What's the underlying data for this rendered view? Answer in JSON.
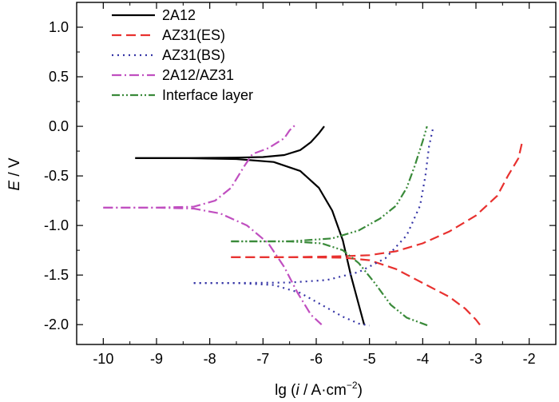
{
  "chart_data": {
    "type": "line",
    "title": "",
    "xlabel": {
      "prefix": "lg (",
      "italic": "i",
      "middle": " / A·cm",
      "sup": "−2",
      "suffix": ")"
    },
    "ylabel": {
      "italic": "E",
      "rest": " / V"
    },
    "xlim": [
      -10.5,
      -1.5
    ],
    "ylim": [
      -2.2,
      1.25
    ],
    "xticks": [
      -10,
      -9,
      -8,
      -7,
      -6,
      -5,
      -4,
      -3,
      -2
    ],
    "xtick_labels": [
      "-10",
      "-9",
      "-8",
      "-7",
      "-6",
      "-5",
      "-4",
      "-3",
      "-2"
    ],
    "yticks": [
      1.0,
      0.5,
      0.0,
      -0.5,
      -1.0,
      -1.5,
      -2.0
    ],
    "ytick_labels": [
      "1.0",
      "0.5",
      "0.0",
      "-0.5",
      "-1.0",
      "-1.5",
      "-2.0"
    ],
    "grid": false,
    "legend_position": "top-left",
    "series": [
      {
        "name": "2A12",
        "color": "#000000",
        "dash": "solid",
        "anodic": [
          [
            -9.4,
            -0.32
          ],
          [
            -8.5,
            -0.32
          ],
          [
            -7.5,
            -0.315
          ],
          [
            -7.0,
            -0.31
          ],
          [
            -6.6,
            -0.29
          ],
          [
            -6.3,
            -0.24
          ],
          [
            -6.1,
            -0.16
          ],
          [
            -5.95,
            -0.07
          ],
          [
            -5.85,
            0.0
          ]
        ],
        "cathodic": [
          [
            -9.4,
            -0.32
          ],
          [
            -8.5,
            -0.32
          ],
          [
            -7.5,
            -0.33
          ],
          [
            -6.8,
            -0.36
          ],
          [
            -6.3,
            -0.45
          ],
          [
            -5.95,
            -0.62
          ],
          [
            -5.7,
            -0.85
          ],
          [
            -5.5,
            -1.15
          ],
          [
            -5.35,
            -1.5
          ],
          [
            -5.2,
            -1.8
          ],
          [
            -5.1,
            -2.0
          ]
        ]
      },
      {
        "name": "AZ31(ES)",
        "color": "#e8312f",
        "dash": "long-dash",
        "anodic": [
          [
            -7.6,
            -1.32
          ],
          [
            -6.5,
            -1.32
          ],
          [
            -5.5,
            -1.31
          ],
          [
            -5.0,
            -1.3
          ],
          [
            -4.5,
            -1.26
          ],
          [
            -4.0,
            -1.18
          ],
          [
            -3.5,
            -1.06
          ],
          [
            -3.0,
            -0.9
          ],
          [
            -2.6,
            -0.7
          ],
          [
            -2.4,
            -0.5
          ],
          [
            -2.2,
            -0.32
          ],
          [
            -2.12,
            -0.13
          ]
        ],
        "cathodic": [
          [
            -7.6,
            -1.32
          ],
          [
            -6.5,
            -1.32
          ],
          [
            -5.5,
            -1.325
          ],
          [
            -5.0,
            -1.35
          ],
          [
            -4.5,
            -1.44
          ],
          [
            -4.0,
            -1.58
          ],
          [
            -3.5,
            -1.72
          ],
          [
            -3.2,
            -1.84
          ],
          [
            -3.0,
            -1.95
          ],
          [
            -2.9,
            -2.02
          ]
        ]
      },
      {
        "name": "AZ31(BS)",
        "color": "#3535a6",
        "dash": "dot",
        "anodic": [
          [
            -8.3,
            -1.58
          ],
          [
            -7.5,
            -1.58
          ],
          [
            -6.5,
            -1.575
          ],
          [
            -5.8,
            -1.55
          ],
          [
            -5.2,
            -1.47
          ],
          [
            -4.7,
            -1.33
          ],
          [
            -4.3,
            -1.1
          ],
          [
            -4.05,
            -0.8
          ],
          [
            -3.95,
            -0.5
          ],
          [
            -3.88,
            -0.2
          ],
          [
            -3.8,
            0.0
          ]
        ],
        "cathodic": [
          [
            -8.3,
            -1.58
          ],
          [
            -7.5,
            -1.58
          ],
          [
            -6.8,
            -1.6
          ],
          [
            -6.3,
            -1.68
          ],
          [
            -5.9,
            -1.8
          ],
          [
            -5.5,
            -1.92
          ],
          [
            -5.2,
            -1.99
          ],
          [
            -5.0,
            -2.01
          ]
        ]
      },
      {
        "name": "2A12/AZ31",
        "color": "#c04fc0",
        "dash": "dash-dot",
        "anodic": [
          [
            -10.0,
            -0.82
          ],
          [
            -9.0,
            -0.82
          ],
          [
            -8.3,
            -0.81
          ],
          [
            -7.9,
            -0.75
          ],
          [
            -7.6,
            -0.62
          ],
          [
            -7.35,
            -0.4
          ],
          [
            -7.2,
            -0.28
          ],
          [
            -6.9,
            -0.22
          ],
          [
            -6.6,
            -0.12
          ],
          [
            -6.5,
            -0.04
          ],
          [
            -6.4,
            0.01
          ]
        ],
        "cathodic": [
          [
            -10.0,
            -0.82
          ],
          [
            -9.0,
            -0.82
          ],
          [
            -8.3,
            -0.83
          ],
          [
            -7.8,
            -0.88
          ],
          [
            -7.3,
            -1.0
          ],
          [
            -6.9,
            -1.18
          ],
          [
            -6.6,
            -1.42
          ],
          [
            -6.35,
            -1.68
          ],
          [
            -6.1,
            -1.9
          ],
          [
            -5.9,
            -2.0
          ]
        ]
      },
      {
        "name": "Interface layer",
        "color": "#3a8a3a",
        "dash": "dash-dot-dot",
        "anodic": [
          [
            -7.6,
            -1.16
          ],
          [
            -6.5,
            -1.16
          ],
          [
            -5.7,
            -1.13
          ],
          [
            -5.2,
            -1.05
          ],
          [
            -4.8,
            -0.93
          ],
          [
            -4.5,
            -0.8
          ],
          [
            -4.3,
            -0.62
          ],
          [
            -4.15,
            -0.4
          ],
          [
            -4.0,
            -0.15
          ],
          [
            -3.92,
            0.0
          ]
        ],
        "cathodic": [
          [
            -7.6,
            -1.16
          ],
          [
            -6.5,
            -1.16
          ],
          [
            -5.9,
            -1.18
          ],
          [
            -5.5,
            -1.25
          ],
          [
            -5.2,
            -1.38
          ],
          [
            -4.9,
            -1.58
          ],
          [
            -4.6,
            -1.8
          ],
          [
            -4.3,
            -1.93
          ],
          [
            -3.9,
            -2.01
          ]
        ]
      }
    ]
  }
}
